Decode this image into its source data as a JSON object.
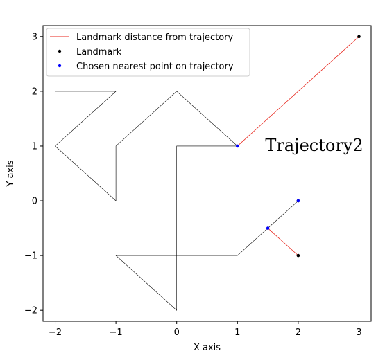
{
  "chart_data": {
    "type": "line",
    "xlabel": "X axis",
    "ylabel": "Y axis",
    "xlim": [
      -2.2,
      3.2
    ],
    "ylim": [
      -2.2,
      3.2
    ],
    "xticks": [
      -2,
      -1,
      0,
      1,
      2,
      3
    ],
    "yticks": [
      -2,
      -1,
      0,
      1,
      2,
      3
    ],
    "grid": false,
    "legend_position": "top-left",
    "annotation": "Trajectory2",
    "trajectory": {
      "color": "#000000",
      "points": [
        [
          -2,
          2
        ],
        [
          -1,
          2
        ],
        [
          -2,
          1
        ],
        [
          -1,
          0
        ],
        [
          -1,
          1
        ],
        [
          0,
          2
        ],
        [
          1,
          1
        ],
        [
          0,
          1
        ],
        [
          0,
          -1
        ],
        [
          -1,
          -1
        ],
        [
          0,
          -2
        ],
        [
          0,
          0
        ],
        [
          0,
          -1
        ],
        [
          1,
          -1
        ],
        [
          2,
          0
        ]
      ]
    },
    "series": [
      {
        "name": "Landmark distance from trajectory",
        "kind": "line",
        "color": "#e8261c",
        "segments": [
          [
            [
              1,
              1
            ],
            [
              3,
              3
            ]
          ],
          [
            [
              1.5,
              -0.5
            ],
            [
              2,
              -1
            ]
          ]
        ]
      },
      {
        "name": "Landmark",
        "kind": "scatter",
        "color": "#000000",
        "points": [
          [
            3,
            3
          ],
          [
            2,
            -1
          ],
          [
            2,
            0
          ]
        ]
      },
      {
        "name": "Chosen nearest point on trajectory",
        "kind": "scatter",
        "color": "#0000ff",
        "points": [
          [
            1,
            1
          ],
          [
            1.5,
            -0.5
          ],
          [
            2,
            0
          ]
        ]
      }
    ]
  }
}
